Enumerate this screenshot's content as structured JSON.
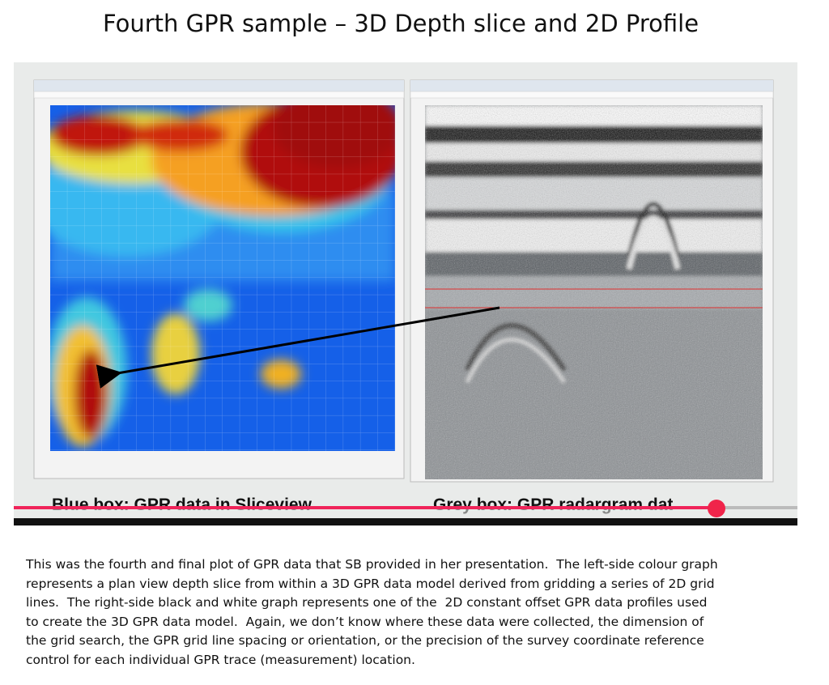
{
  "header": {
    "title": "Fourth GPR sample – 3D Depth slice and 2D Profile"
  },
  "figure": {
    "left_caption": "Blue box: GPR data in Sliceview",
    "right_caption": "Grey box: GPR radargram dat"
  },
  "paragraph": {
    "lines": [
      "This was the fourth and final plot of GPR data that SB provided in her presentation.  The left-side colour graph",
      "represents a plan view depth slice from within a 3D GPR data model derived from gridding a series of 2D grid",
      "lines.  The right-side black and white graph represents one of the  2D constant offset GPR data profiles used",
      "to create the 3D GPR data model.  Again, we don’t know where these data were collected, the dimension of",
      "the grid search, the GPR grid line spacing or orientation, or the precision of the survey coordinate reference",
      "control for each individual GPR trace (measurement) location."
    ]
  }
}
